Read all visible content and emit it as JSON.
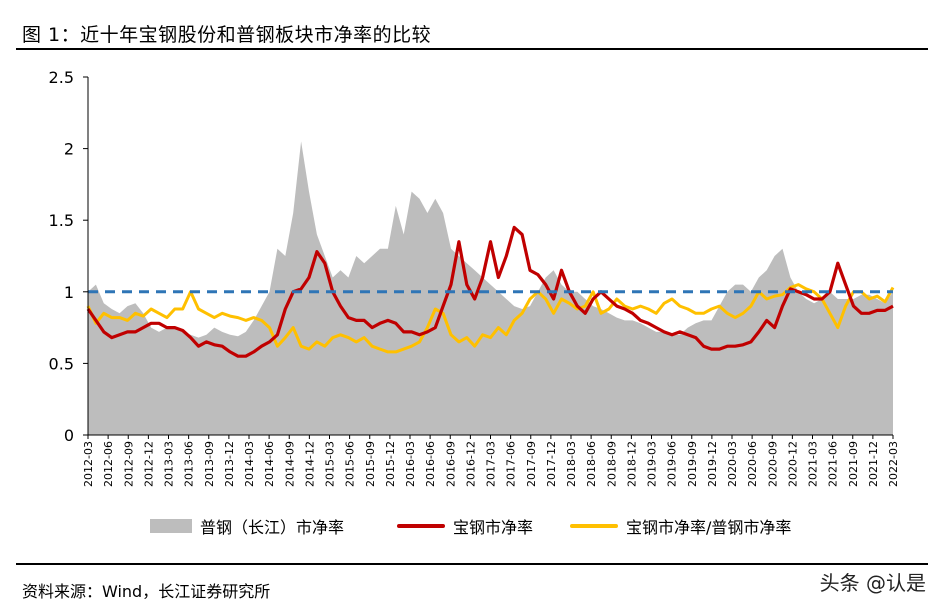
{
  "page": {
    "title": "图 1：近十年宝钢股份和普钢板块市净率的比较",
    "source": "资料来源：Wind，长江证券研究所",
    "watermark": "头条 @认是"
  },
  "colors": {
    "area": "#bdbdbd",
    "baosteel": "#c00000",
    "ratio": "#ffc000",
    "reference": "#2e75b6"
  },
  "chart_data": {
    "type": "area",
    "x_tick_labels": [
      "2012-03",
      "2012-06",
      "2012-09",
      "2012-12",
      "2013-03",
      "2013-06",
      "2013-09",
      "2013-12",
      "2014-03",
      "2014-06",
      "2014-09",
      "2014-12",
      "2015-03",
      "2015-06",
      "2015-09",
      "2015-12",
      "2016-03",
      "2016-06",
      "2016-09",
      "2016-12",
      "2017-03",
      "2017-06",
      "2017-09",
      "2017-12",
      "2018-03",
      "2018-06",
      "2018-09",
      "2018-12",
      "2019-03",
      "2019-06",
      "2019-09",
      "2019-12",
      "2020-03",
      "2020-06",
      "2020-09",
      "2020-12",
      "2021-03",
      "2021-06",
      "2021-09",
      "2021-12",
      "2022-03"
    ],
    "ylim": [
      0,
      2.5
    ],
    "y_ticks": [
      "0",
      "0.5",
      "1",
      "1.5",
      "2",
      "2.5"
    ],
    "reference_line": 1.0,
    "series": [
      {
        "name": "普钢（长江）市净率",
        "style": "area",
        "values": [
          1.0,
          1.05,
          0.92,
          0.88,
          0.85,
          0.9,
          0.92,
          0.85,
          0.75,
          0.72,
          0.75,
          0.75,
          0.72,
          0.7,
          0.68,
          0.7,
          0.75,
          0.72,
          0.7,
          0.69,
          0.72,
          0.8,
          0.9,
          1.0,
          1.3,
          1.25,
          1.55,
          2.05,
          1.7,
          1.4,
          1.25,
          1.1,
          1.15,
          1.1,
          1.25,
          1.2,
          1.25,
          1.3,
          1.3,
          1.6,
          1.4,
          1.7,
          1.65,
          1.55,
          1.65,
          1.55,
          1.3,
          1.25,
          1.2,
          1.15,
          1.1,
          1.05,
          1.0,
          0.95,
          0.9,
          0.88,
          0.9,
          1.0,
          1.1,
          1.15,
          1.05,
          1.0,
          1.0,
          0.95,
          0.9,
          0.88,
          0.85,
          0.82,
          0.8,
          0.8,
          0.78,
          0.75,
          0.72,
          0.72,
          0.7,
          0.7,
          0.75,
          0.78,
          0.8,
          0.8,
          0.9,
          1.0,
          1.05,
          1.05,
          1.0,
          1.1,
          1.15,
          1.25,
          1.3,
          1.1,
          1.0,
          0.95,
          0.92,
          0.95,
          1.0,
          0.95,
          0.95,
          0.95,
          0.98,
          0.98,
          0.95,
          0.92,
          1.0
        ]
      },
      {
        "name": "宝钢市净率",
        "style": "line",
        "values": [
          0.88,
          0.8,
          0.72,
          0.68,
          0.7,
          0.72,
          0.72,
          0.75,
          0.78,
          0.78,
          0.75,
          0.75,
          0.73,
          0.68,
          0.62,
          0.65,
          0.63,
          0.62,
          0.58,
          0.55,
          0.55,
          0.58,
          0.62,
          0.65,
          0.7,
          0.88,
          1.0,
          1.02,
          1.1,
          1.28,
          1.2,
          1.0,
          0.9,
          0.82,
          0.8,
          0.8,
          0.75,
          0.78,
          0.8,
          0.78,
          0.72,
          0.72,
          0.7,
          0.72,
          0.75,
          0.9,
          1.05,
          1.35,
          1.05,
          0.95,
          1.1,
          1.35,
          1.1,
          1.25,
          1.45,
          1.4,
          1.15,
          1.12,
          1.05,
          0.95,
          1.15,
          1.0,
          0.9,
          0.85,
          0.95,
          1.0,
          0.95,
          0.9,
          0.88,
          0.85,
          0.8,
          0.78,
          0.75,
          0.72,
          0.7,
          0.72,
          0.7,
          0.68,
          0.62,
          0.6,
          0.6,
          0.62,
          0.62,
          0.63,
          0.65,
          0.72,
          0.8,
          0.75,
          0.9,
          1.02,
          1.0,
          0.98,
          0.95,
          0.95,
          1.0,
          1.2,
          1.05,
          0.9,
          0.85,
          0.85,
          0.87,
          0.87,
          0.9
        ]
      },
      {
        "name": "宝钢市净率/普钢市净率",
        "style": "line",
        "values": [
          0.9,
          0.78,
          0.85,
          0.82,
          0.82,
          0.8,
          0.85,
          0.83,
          0.88,
          0.85,
          0.82,
          0.88,
          0.88,
          1.0,
          0.88,
          0.85,
          0.82,
          0.85,
          0.83,
          0.82,
          0.8,
          0.82,
          0.8,
          0.75,
          0.62,
          0.68,
          0.75,
          0.62,
          0.6,
          0.65,
          0.62,
          0.68,
          0.7,
          0.68,
          0.65,
          0.68,
          0.62,
          0.6,
          0.58,
          0.58,
          0.6,
          0.62,
          0.65,
          0.75,
          0.88,
          0.85,
          0.7,
          0.65,
          0.68,
          0.62,
          0.7,
          0.68,
          0.75,
          0.7,
          0.8,
          0.85,
          0.95,
          1.0,
          0.95,
          0.85,
          0.95,
          0.92,
          0.88,
          0.9,
          1.0,
          0.85,
          0.88,
          0.95,
          0.9,
          0.88,
          0.9,
          0.88,
          0.85,
          0.92,
          0.95,
          0.9,
          0.88,
          0.85,
          0.85,
          0.88,
          0.9,
          0.85,
          0.82,
          0.85,
          0.9,
          1.0,
          0.95,
          0.97,
          0.98,
          1.03,
          1.05,
          1.02,
          1.0,
          0.95,
          0.85,
          0.75,
          0.9,
          1.0,
          1.0,
          0.95,
          0.97,
          0.93,
          1.03
        ]
      }
    ],
    "legend_position": "bottom",
    "grid": false
  },
  "legend": {
    "item0": "普钢（长江）市净率",
    "item1": "宝钢市净率",
    "item2": "宝钢市净率/普钢市净率"
  }
}
